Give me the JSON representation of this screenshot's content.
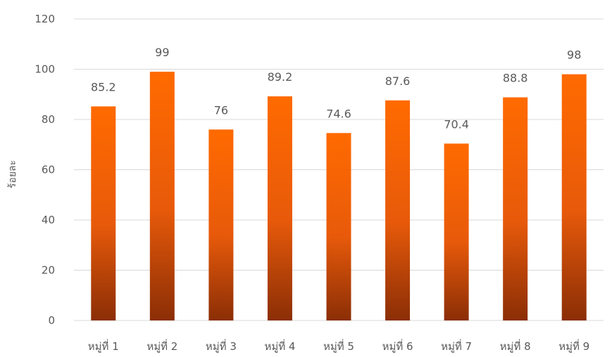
{
  "chart_data": {
    "type": "bar",
    "title": "",
    "xlabel": "",
    "ylabel": "ร้อยละ",
    "categories": [
      "หมู่ที่ 1",
      "หมู่ที่ 2",
      "หมู่ที่ 3",
      "หมู่ที่ 4",
      "หมู่ที่ 5",
      "หมู่ที่ 6",
      "หมู่ที่ 7",
      "หมู่ที่ 8",
      "หมู่ที่ 9"
    ],
    "values": [
      85.2,
      99,
      76,
      89.2,
      74.6,
      87.6,
      70.4,
      88.8,
      98
    ],
    "value_labels": [
      "85.2",
      "99",
      "76",
      "89.2",
      "74.6",
      "87.6",
      "70.4",
      "88.8",
      "98"
    ],
    "ylim": [
      0,
      120
    ],
    "yticks": [
      0,
      20,
      40,
      60,
      80,
      100,
      120
    ],
    "grid": true,
    "legend": "none",
    "colors": {
      "bar_top": "#ff6a00",
      "bar_bottom": "#8b2e06",
      "grid": "#d9d9d9",
      "text": "#595959"
    }
  }
}
